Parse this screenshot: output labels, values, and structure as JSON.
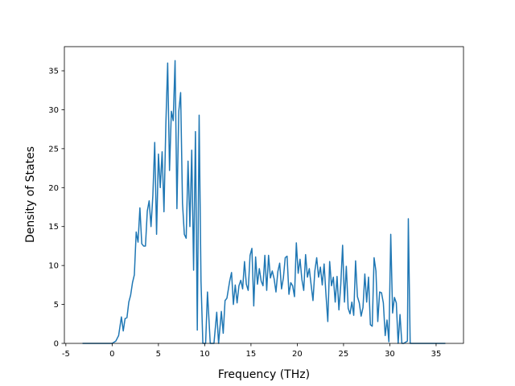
{
  "chart_data": {
    "type": "line",
    "x_label": "Frequency (THz)",
    "y_label": "Density of States",
    "x": [
      -3.2,
      0,
      0.4,
      0.7,
      1.0,
      1.2,
      1.4,
      1.6,
      1.8,
      2.0,
      2.2,
      2.4,
      2.6,
      2.8,
      3.0,
      3.2,
      3.4,
      3.6,
      3.8,
      4.0,
      4.2,
      4.4,
      4.6,
      4.8,
      5.0,
      5.2,
      5.4,
      5.6,
      5.8,
      6.0,
      6.2,
      6.4,
      6.6,
      6.8,
      7.0,
      7.2,
      7.4,
      7.6,
      7.8,
      8.0,
      8.2,
      8.4,
      8.6,
      8.8,
      9.0,
      9.2,
      9.4,
      9.6,
      9.8,
      10.1,
      10.3,
      10.6,
      11.0,
      11.3,
      11.5,
      11.8,
      12.0,
      12.2,
      12.4,
      12.7,
      12.9,
      13.1,
      13.3,
      13.5,
      13.7,
      13.9,
      14.1,
      14.3,
      14.5,
      14.7,
      14.9,
      15.1,
      15.3,
      15.5,
      15.7,
      15.9,
      16.1,
      16.3,
      16.5,
      16.7,
      16.9,
      17.1,
      17.3,
      17.5,
      17.7,
      17.9,
      18.1,
      18.3,
      18.5,
      18.7,
      18.9,
      19.1,
      19.3,
      19.5,
      19.7,
      19.9,
      20.1,
      20.3,
      20.5,
      20.7,
      20.9,
      21.1,
      21.3,
      21.5,
      21.7,
      21.9,
      22.1,
      22.3,
      22.5,
      22.7,
      22.9,
      23.1,
      23.3,
      23.5,
      23.7,
      23.9,
      24.1,
      24.3,
      24.5,
      24.7,
      24.9,
      25.1,
      25.3,
      25.5,
      25.7,
      25.9,
      26.1,
      26.3,
      26.5,
      26.7,
      26.9,
      27.1,
      27.3,
      27.5,
      27.7,
      27.9,
      28.1,
      28.3,
      28.5,
      28.7,
      28.9,
      29.1,
      29.3,
      29.5,
      29.7,
      29.9,
      30.1,
      30.3,
      30.5,
      30.7,
      30.9,
      31.1,
      31.3,
      31.5,
      31.9,
      32.0,
      32.2,
      36.0
    ],
    "series": [
      {
        "color": "#1f77b4",
        "values": [
          0,
          0,
          0.3,
          1,
          3.4,
          1.6,
          3.2,
          3.3,
          5.3,
          6.2,
          7.8,
          8.8,
          14.3,
          13,
          17.4,
          12.8,
          12.5,
          12.5,
          17,
          18.3,
          15,
          19,
          25.8,
          14,
          24.3,
          20,
          24.6,
          16.9,
          28,
          36,
          22.2,
          29.8,
          28.6,
          36.3,
          17.3,
          29.8,
          32.2,
          18,
          14,
          13.5,
          23.4,
          15,
          24.8,
          9.4,
          27.2,
          1.7,
          29.3,
          8,
          0,
          0,
          6.6,
          0,
          0,
          4,
          0,
          4.1,
          1.3,
          5.5,
          5.8,
          8,
          9.1,
          5,
          7.5,
          5.2,
          7.4,
          8.1,
          7,
          10.5,
          7.6,
          6.8,
          11.3,
          12.2,
          4.8,
          11.1,
          7.6,
          9.6,
          8,
          7.4,
          11.3,
          6.8,
          11.3,
          8.4,
          9.3,
          8.3,
          6.6,
          9.2,
          10.3,
          7,
          8.4,
          11,
          11.2,
          6.3,
          7.8,
          7.4,
          6,
          12.9,
          9,
          10.8,
          8.2,
          6.8,
          11.4,
          8.5,
          9.6,
          7.5,
          5.5,
          9.3,
          11,
          8.5,
          9.8,
          7.5,
          10.2,
          6.3,
          2.8,
          10.5,
          7.4,
          8.5,
          5.3,
          8.6,
          4.3,
          7.5,
          12.6,
          5.3,
          9.9,
          4.5,
          3.8,
          5.3,
          3.6,
          10.6,
          6,
          5.2,
          3.5,
          4.6,
          8.9,
          5.3,
          8.5,
          2.4,
          2.2,
          11,
          9.3,
          2.8,
          6.6,
          6.5,
          5.2,
          1,
          3,
          0.2,
          14,
          3.9,
          5.9,
          5.2,
          0,
          3.7,
          0,
          0,
          0.3,
          16,
          0,
          0
        ]
      }
    ],
    "xlim": [
      -5.16,
      37.96
    ],
    "xticks": [
      -5,
      0,
      5,
      10,
      15,
      20,
      25,
      30,
      35
    ],
    "ylim": [
      0,
      38.1
    ],
    "yticks": [
      0,
      5,
      10,
      15,
      20,
      25,
      30,
      35
    ]
  }
}
